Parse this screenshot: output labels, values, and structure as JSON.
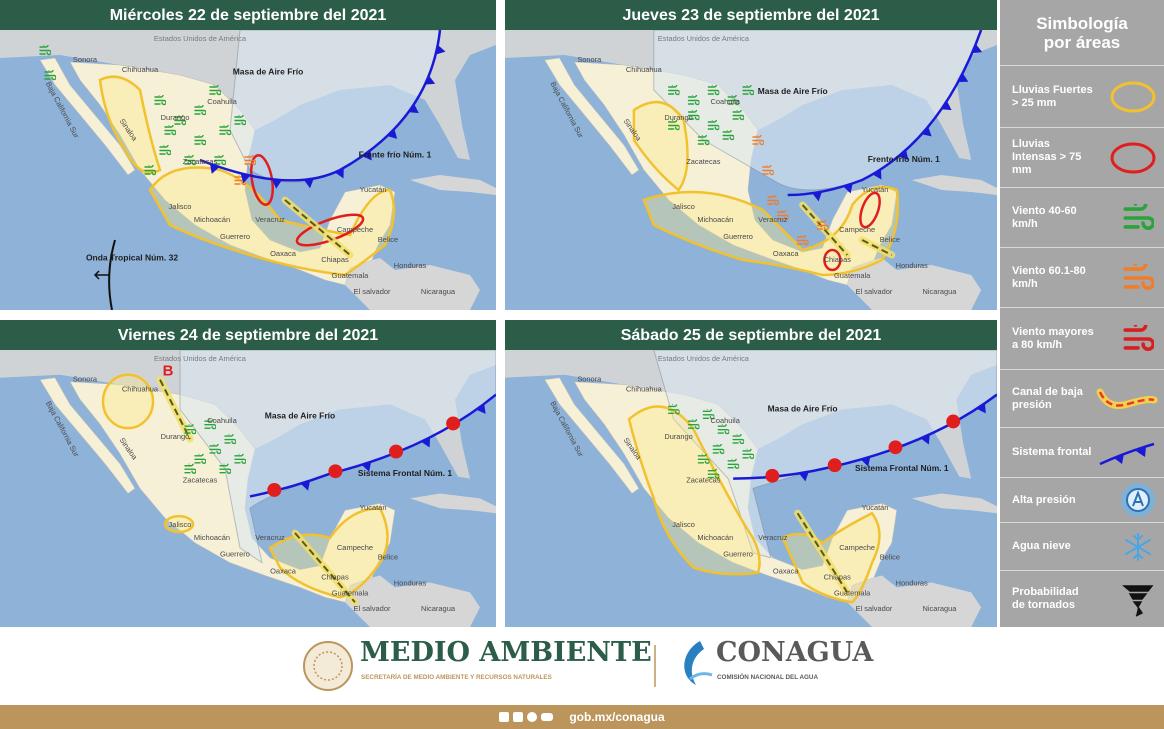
{
  "panels": [
    {
      "title": "Miércoles 22 de septiembre del 2021",
      "places": [
        "Estados Unidos de América",
        "Sonora",
        "Chihuahua",
        "Coahuila",
        "Baja California Sur",
        "Sinaloa",
        "Durango",
        "Zacatecas",
        "Jalisco",
        "Michoacán",
        "Guerrero",
        "Oaxaca",
        "Veracruz",
        "Campeche",
        "Yucatán",
        "Chiapas",
        "Belice",
        "Guatemala",
        "Honduras",
        "El salvador",
        "Nicaragua"
      ],
      "systems": [
        "Masa de Aire Frío",
        "Frente frío Núm. 1",
        "Onda Tropical Núm. 32"
      ]
    },
    {
      "title": "Jueves 23 de septiembre del 2021",
      "places": [
        "Estados Unidos de América",
        "Sonora",
        "Chihuahua",
        "Coahuila",
        "Baja California Sur",
        "Sinaloa",
        "Durango",
        "Zacatecas",
        "Jalisco",
        "Michoacán",
        "Guerrero",
        "Oaxaca",
        "Veracruz",
        "Campeche",
        "Yucatán",
        "Chiapas",
        "Belice",
        "Guatemala",
        "Honduras",
        "El salvador",
        "Nicaragua"
      ],
      "systems": [
        "Masa de Aire Frío",
        "Frente frío Núm. 1"
      ]
    },
    {
      "title": "Viernes 24 de septiembre del 2021",
      "places": [
        "Estados Unidos de América",
        "Sonora",
        "Chihuahua",
        "Coahuila",
        "Baja California Sur",
        "Sinaloa",
        "Durango",
        "Zacatecas",
        "Jalisco",
        "Michoacán",
        "Guerrero",
        "Oaxaca",
        "Veracruz",
        "Campeche",
        "Yucatán",
        "Chiapas",
        "Belice",
        "Guatemala",
        "Honduras",
        "El salvador",
        "Nicaragua"
      ],
      "systems": [
        "B",
        "Masa de Aire Frío",
        "Sistema Frontal Núm. 1"
      ]
    },
    {
      "title": "Sábado 25 de septiembre del 2021",
      "places": [
        "Estados Unidos de América",
        "Sonora",
        "Chihuahua",
        "Coahuila",
        "Baja California Sur",
        "Sinaloa",
        "Durango",
        "Zacatecas",
        "Jalisco",
        "Michoacán",
        "Guerrero",
        "Oaxaca",
        "Veracruz",
        "Campeche",
        "Yucatán",
        "Chiapas",
        "Belice",
        "Guatemala",
        "Honduras",
        "El salvador",
        "Nicaragua"
      ],
      "systems": [
        "Masa de Aire Frío",
        "Sistema Frontal Núm. 1"
      ]
    }
  ],
  "legend": {
    "title": "Simbología por áreas",
    "items": [
      "Lluvias Fuertes > 25 mm",
      "Lluvias Intensas > 75 mm",
      "Viento 40-60 km/h",
      "Viento 60.1-80 km/h",
      "Viento mayores a 80 km/h",
      "Canal de baja presión",
      "Sistema frontal",
      "Alta presión",
      "Agua nieve",
      "Probabilidad de tornados"
    ]
  },
  "footer": {
    "secretaria": "MEDIO AMBIENTE",
    "secretaria_sub": "SECRETARÍA DE MEDIO AMBIENTE Y RECURSOS NATURALES",
    "agency": "CONAGUA",
    "agency_sub": "COMISIÓN NACIONAL DEL AGUA",
    "url": "gob.mx/conagua"
  }
}
